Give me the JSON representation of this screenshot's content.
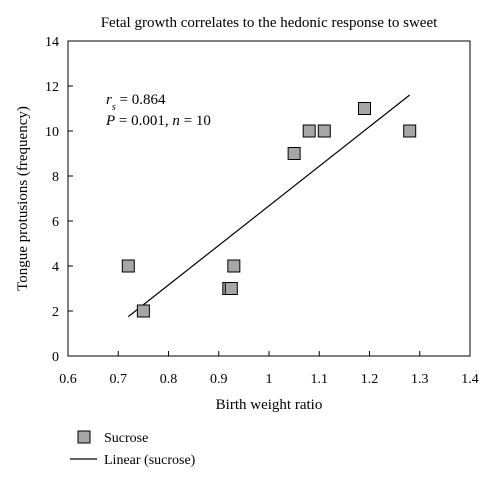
{
  "chart_data": {
    "type": "scatter",
    "title": "Fetal growth correlates to the hedonic response to sweet",
    "xlabel": "Birth weight ratio",
    "ylabel": "Tongue protusions (frequency)",
    "xlim": [
      0.6,
      1.4
    ],
    "ylim": [
      0,
      14
    ],
    "x_ticks": [
      "0.6",
      "0.7",
      "0.8",
      "0.9",
      "1",
      "1.1",
      "1.2",
      "1.3",
      "1.4"
    ],
    "y_ticks": [
      "0",
      "2",
      "4",
      "6",
      "8",
      "10",
      "12",
      "14"
    ],
    "grid": false,
    "series": [
      {
        "name": "Sucrose",
        "kind": "points",
        "marker": "square",
        "color": "#a6a6a6",
        "x": [
          0.72,
          0.75,
          0.92,
          0.925,
          0.93,
          1.05,
          1.08,
          1.11,
          1.19,
          1.28
        ],
        "y": [
          4,
          2,
          3,
          3,
          4,
          9,
          10,
          10,
          11,
          10
        ]
      },
      {
        "name": "Linear (sucrose)",
        "kind": "line",
        "color": "#000000",
        "x": [
          0.72,
          1.28
        ],
        "y": [
          1.75,
          11.6
        ]
      }
    ],
    "annotation": {
      "rs_label": "r",
      "rs_sub": "s",
      "rs_value": " = 0.864",
      "p_label": "P",
      "p_value": " = 0.001, ",
      "n_label": "n",
      "n_value": " = 10"
    },
    "legend_position": "bottom-left"
  }
}
